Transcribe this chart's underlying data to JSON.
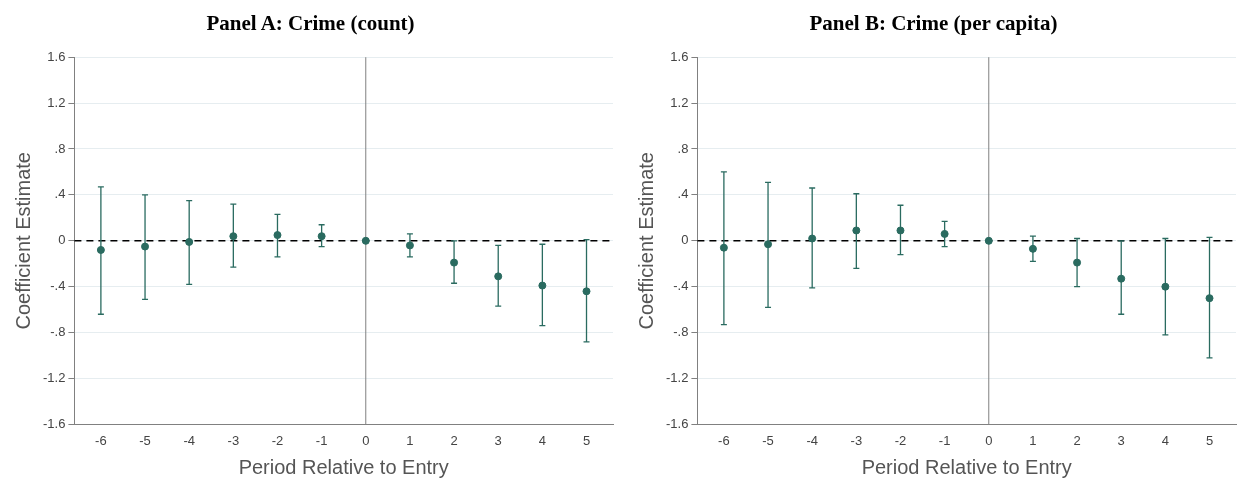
{
  "chart_data": [
    {
      "type": "scatter",
      "title": "Panel A: Crime (count)",
      "xlabel": "Period Relative to Entry",
      "ylabel": "Coefficient Estimate",
      "x": [
        -6,
        -5,
        -4,
        -3,
        -2,
        -1,
        0,
        1,
        2,
        3,
        4,
        5
      ],
      "series": [
        {
          "color": "#2a6b60",
          "values": [
            -0.08,
            -0.05,
            -0.01,
            0.04,
            0.05,
            0.04,
            0,
            -0.04,
            -0.19,
            -0.31,
            -0.39,
            -0.44
          ],
          "errors": [
            [
              -0.64,
              0.47
            ],
            [
              -0.51,
              0.4
            ],
            [
              -0.38,
              0.35
            ],
            [
              -0.23,
              0.32
            ],
            [
              -0.14,
              0.23
            ],
            [
              -0.05,
              0.14
            ],
            null,
            [
              -0.14,
              0.06
            ],
            [
              -0.37,
              0.0
            ],
            [
              -0.57,
              -0.04
            ],
            [
              -0.74,
              -0.03
            ],
            [
              -0.88,
              0.01
            ]
          ]
        }
      ],
      "xlim": [
        -6.6,
        5.6
      ],
      "xticks": [
        -6,
        -5,
        -4,
        -3,
        -2,
        -1,
        0,
        1,
        2,
        3,
        4,
        5
      ],
      "ylim": [
        -1.6,
        1.6
      ],
      "yticks": [
        {
          "value": -1.6,
          "label": "-1.6"
        },
        {
          "value": -1.2,
          "label": "-1.2"
        },
        {
          "value": -0.8,
          "label": "-.8"
        },
        {
          "value": -0.4,
          "label": "-.4"
        },
        0,
        {
          "value": 0.4,
          "label": ".4"
        },
        {
          "value": 0.8,
          "label": ".8"
        },
        {
          "value": 1.2,
          "label": "1.2"
        },
        {
          "value": 1.6,
          "label": "1.6"
        }
      ],
      "grid": "y",
      "marker": "circle",
      "legend": false,
      "ref_lines": [
        {
          "axis": "y",
          "value": 0,
          "color": "#000000",
          "line_style": "dashed"
        },
        {
          "axis": "x",
          "value": 0,
          "color": "#808080",
          "line_style": "solid"
        }
      ]
    },
    {
      "type": "scatter",
      "title": "Panel B: Crime (per capita)",
      "xlabel": "Period Relative to Entry",
      "ylabel": "Coefficient Estimate",
      "x": [
        -6,
        -5,
        -4,
        -3,
        -2,
        -1,
        0,
        1,
        2,
        3,
        4,
        5
      ],
      "series": [
        {
          "color": "#2a6b60",
          "values": [
            -0.06,
            -0.03,
            0.02,
            0.09,
            0.09,
            0.06,
            0,
            -0.07,
            -0.19,
            -0.33,
            -0.4,
            -0.5
          ],
          "errors": [
            [
              -0.73,
              0.6
            ],
            [
              -0.58,
              0.51
            ],
            [
              -0.41,
              0.46
            ],
            [
              -0.24,
              0.41
            ],
            [
              -0.12,
              0.31
            ],
            [
              -0.05,
              0.17
            ],
            null,
            [
              -0.18,
              0.04
            ],
            [
              -0.4,
              0.02
            ],
            [
              -0.64,
              0.0
            ],
            [
              -0.82,
              0.02
            ],
            [
              -1.02,
              0.03
            ]
          ]
        }
      ],
      "xlim": [
        -6.6,
        5.6
      ],
      "xticks": [
        -6,
        -5,
        -4,
        -3,
        -2,
        -1,
        0,
        1,
        2,
        3,
        4,
        5
      ],
      "ylim": [
        -1.6,
        1.6
      ],
      "yticks": [
        {
          "value": -1.6,
          "label": "-1.6"
        },
        {
          "value": -1.2,
          "label": "-1.2"
        },
        {
          "value": -0.8,
          "label": "-.8"
        },
        {
          "value": -0.4,
          "label": "-.4"
        },
        0,
        {
          "value": 0.4,
          "label": ".4"
        },
        {
          "value": 0.8,
          "label": ".8"
        },
        {
          "value": 1.2,
          "label": "1.2"
        },
        {
          "value": 1.6,
          "label": "1.6"
        }
      ],
      "grid": "y",
      "marker": "circle",
      "legend": false,
      "ref_lines": [
        {
          "axis": "y",
          "value": 0,
          "color": "#000000",
          "line_style": "dashed"
        },
        {
          "axis": "x",
          "value": 0,
          "color": "#808080",
          "line_style": "solid"
        }
      ]
    }
  ]
}
